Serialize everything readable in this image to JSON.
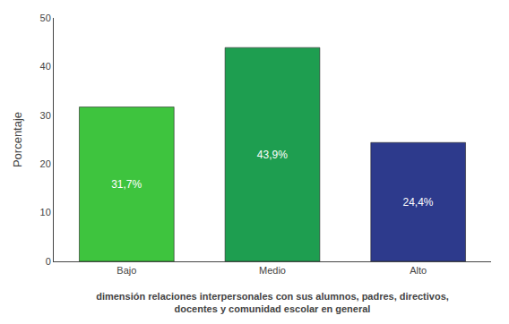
{
  "chart_data": {
    "type": "bar",
    "categories": [
      "Bajo",
      "Medio",
      "Alto"
    ],
    "values": [
      31.7,
      43.9,
      24.4
    ],
    "value_labels": [
      "31,7%",
      "43,9%",
      "24,4%"
    ],
    "data_labels": true,
    "colors": [
      "#3ec43e",
      "#1e9e50",
      "#2d3a8c"
    ],
    "ylabel": "Porcentaje",
    "xlabel": "dimensión relaciones interpersonales con sus alumnos, padres, directivos,\ndocentes y comunidad escolar en general",
    "ylim": [
      0,
      50
    ],
    "yticks": [
      0,
      10,
      20,
      30,
      40,
      50
    ],
    "grid": false
  }
}
